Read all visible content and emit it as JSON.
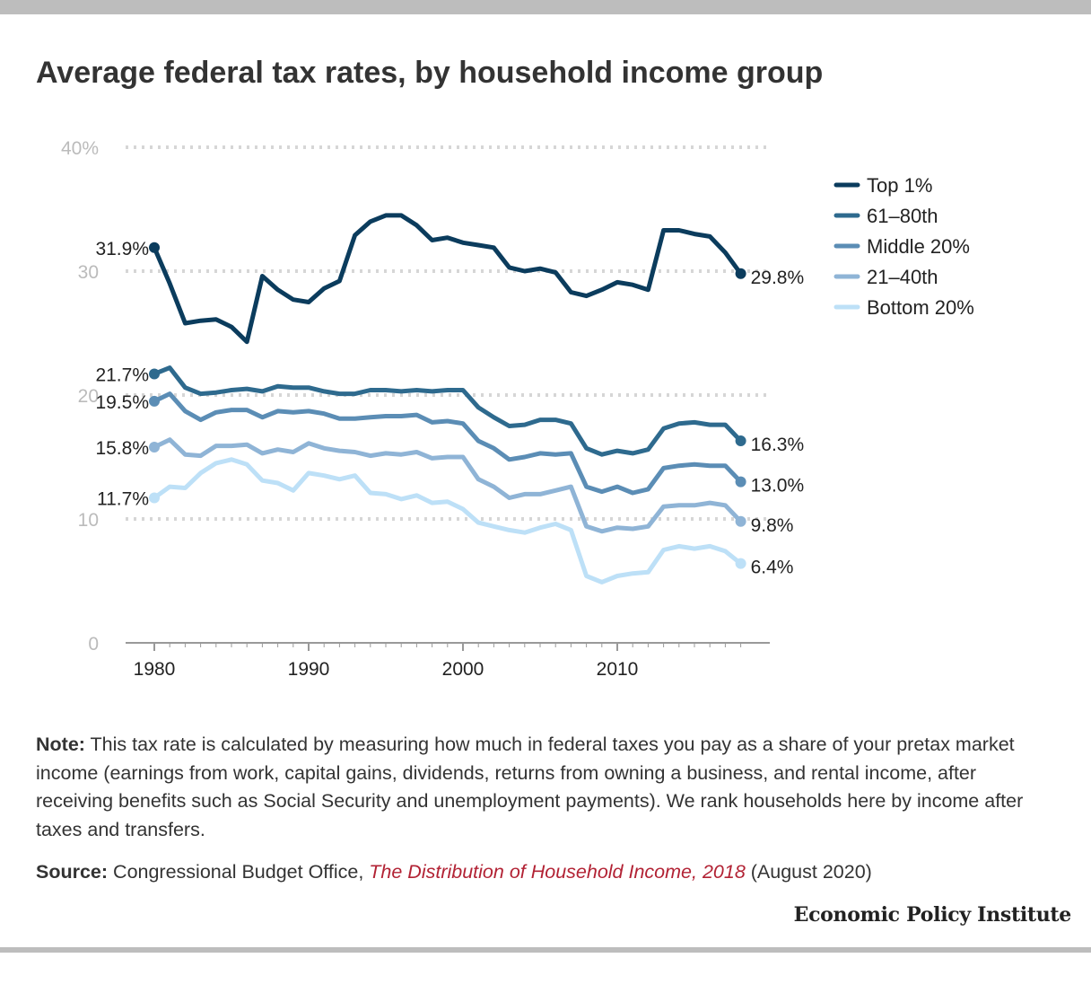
{
  "header": {
    "title": "Average federal tax rates, by household income group"
  },
  "chart_data": {
    "type": "line",
    "title": "Average federal tax rates, by household income group",
    "x": [
      1980,
      1981,
      1982,
      1983,
      1984,
      1985,
      1986,
      1987,
      1988,
      1989,
      1990,
      1991,
      1992,
      1993,
      1994,
      1995,
      1996,
      1997,
      1998,
      1999,
      2000,
      2001,
      2002,
      2003,
      2004,
      2005,
      2006,
      2007,
      2008,
      2009,
      2010,
      2011,
      2012,
      2013,
      2014,
      2015,
      2016,
      2017,
      2018
    ],
    "ylim": [
      0,
      40
    ],
    "y_ticks": [
      {
        "value": 0,
        "label": "0"
      },
      {
        "value": 10,
        "label": "10"
      },
      {
        "value": 20,
        "label": "20"
      },
      {
        "value": 30,
        "label": "30"
      },
      {
        "value": 40,
        "label": "40%"
      }
    ],
    "x_ticks": [
      {
        "value": 1980,
        "label": "1980"
      },
      {
        "value": 1990,
        "label": "1990"
      },
      {
        "value": 2000,
        "label": "2000"
      },
      {
        "value": 2010,
        "label": "2010"
      }
    ],
    "grid": true,
    "legend_position": "right",
    "series": [
      {
        "name": "Top 1%",
        "color": "#0b3c5d",
        "start_label": "31.9%",
        "end_label": "29.8%",
        "values": [
          31.9,
          29.0,
          25.8,
          26.0,
          26.1,
          25.5,
          24.3,
          29.6,
          28.5,
          27.7,
          27.5,
          28.6,
          29.2,
          32.9,
          34.0,
          34.5,
          34.5,
          33.7,
          32.5,
          32.7,
          32.3,
          32.1,
          31.9,
          30.3,
          30.0,
          30.2,
          29.9,
          28.3,
          28.0,
          28.5,
          29.1,
          28.9,
          28.5,
          33.3,
          33.3,
          33.0,
          32.8,
          31.5,
          29.8
        ]
      },
      {
        "name": "61–80th",
        "color": "#2e6a8e",
        "start_label": "21.7%",
        "end_label": "16.3%",
        "values": [
          21.7,
          22.2,
          20.6,
          20.1,
          20.2,
          20.4,
          20.5,
          20.3,
          20.7,
          20.6,
          20.6,
          20.3,
          20.1,
          20.1,
          20.4,
          20.4,
          20.3,
          20.4,
          20.3,
          20.4,
          20.4,
          19.0,
          18.2,
          17.5,
          17.6,
          18.0,
          18.0,
          17.7,
          15.7,
          15.2,
          15.5,
          15.3,
          15.6,
          17.3,
          17.7,
          17.8,
          17.6,
          17.6,
          16.3
        ]
      },
      {
        "name": "Middle 20%",
        "color": "#5b8db5",
        "start_label": "19.5%",
        "end_label": "13.0%",
        "values": [
          19.5,
          20.1,
          18.7,
          18.0,
          18.6,
          18.8,
          18.8,
          18.2,
          18.7,
          18.6,
          18.7,
          18.5,
          18.1,
          18.1,
          18.2,
          18.3,
          18.3,
          18.4,
          17.8,
          17.9,
          17.7,
          16.3,
          15.7,
          14.8,
          15.0,
          15.3,
          15.2,
          15.3,
          12.6,
          12.2,
          12.6,
          12.1,
          12.4,
          14.1,
          14.3,
          14.4,
          14.3,
          14.3,
          13.0
        ]
      },
      {
        "name": "21–40th",
        "color": "#8fb4d6",
        "start_label": "15.8%",
        "end_label": "9.8%",
        "values": [
          15.8,
          16.4,
          15.2,
          15.1,
          15.9,
          15.9,
          16.0,
          15.3,
          15.6,
          15.4,
          16.1,
          15.7,
          15.5,
          15.4,
          15.1,
          15.3,
          15.2,
          15.4,
          14.9,
          15.0,
          15.0,
          13.2,
          12.6,
          11.7,
          12.0,
          12.0,
          12.3,
          12.6,
          9.4,
          9.0,
          9.3,
          9.2,
          9.4,
          11.0,
          11.1,
          11.1,
          11.3,
          11.1,
          9.8
        ]
      },
      {
        "name": "Bottom 20%",
        "color": "#bde0f7",
        "start_label": "11.7%",
        "end_label": "6.4%",
        "values": [
          11.7,
          12.6,
          12.5,
          13.7,
          14.5,
          14.8,
          14.4,
          13.1,
          12.9,
          12.3,
          13.7,
          13.5,
          13.2,
          13.5,
          12.1,
          12.0,
          11.6,
          11.9,
          11.3,
          11.4,
          10.8,
          9.7,
          9.4,
          9.1,
          8.9,
          9.3,
          9.6,
          9.1,
          5.4,
          4.9,
          5.4,
          5.6,
          5.7,
          7.5,
          7.8,
          7.6,
          7.8,
          7.4,
          6.4
        ]
      }
    ]
  },
  "footer": {
    "note_label": "Note:",
    "note_text": " This tax rate is calculated by measuring how much in federal taxes you pay as a share of your pretax market income (earnings from work, capital gains, dividends, returns from owning a business, and rental income, after receiving benefits such as Social Security and unemployment payments). We rank households here by income after taxes and transfers.",
    "source_label": "Source:",
    "source_text": " Congressional Budget Office, ",
    "source_publication": "The Distribution of Household Income, 2018",
    "source_date": " (August 2020)",
    "brand": "Economic Policy Institute"
  }
}
